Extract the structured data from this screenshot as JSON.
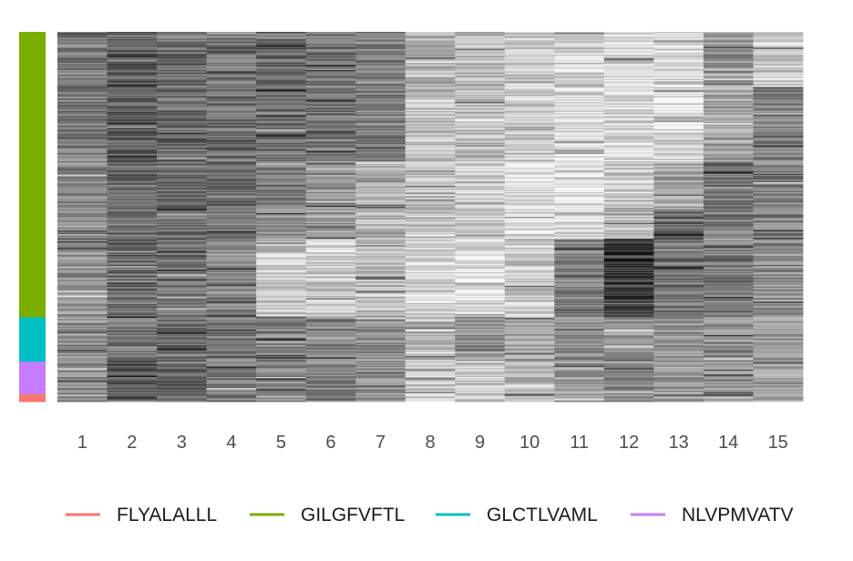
{
  "chart_data": {
    "type": "heatmap",
    "title": "",
    "xlabel": "",
    "ylabel": "",
    "x": [
      "1",
      "2",
      "3",
      "4",
      "5",
      "6",
      "7",
      "8",
      "9",
      "10",
      "11",
      "12",
      "13",
      "14",
      "15"
    ],
    "grid": false,
    "legend_position": "bottom",
    "value_range": [
      0,
      1
    ],
    "row_groups": [
      {
        "name": "GILGFVFTL",
        "color": "#7CAE00",
        "fraction": 0.772
      },
      {
        "name": "GLCTLVAML",
        "color": "#00BFC4",
        "fraction": 0.12
      },
      {
        "name": "NLVPMVATV",
        "color": "#C77CFF",
        "fraction": 0.088
      },
      {
        "name": "FLYALALLL",
        "color": "#F8766D",
        "fraction": 0.02
      }
    ],
    "row_blocks": [
      {
        "fraction": 0.15,
        "col_means": [
          0.5,
          0.35,
          0.42,
          0.45,
          0.42,
          0.45,
          0.5,
          0.72,
          0.72,
          0.76,
          0.82,
          0.82,
          0.86,
          0.6,
          0.78
        ]
      },
      {
        "fraction": 0.2,
        "col_means": [
          0.5,
          0.35,
          0.42,
          0.45,
          0.42,
          0.45,
          0.5,
          0.75,
          0.75,
          0.8,
          0.9,
          0.85,
          0.85,
          0.65,
          0.5
        ]
      },
      {
        "fraction": 0.13,
        "col_means": [
          0.52,
          0.4,
          0.42,
          0.42,
          0.5,
          0.55,
          0.7,
          0.75,
          0.8,
          0.88,
          0.9,
          0.8,
          0.65,
          0.45,
          0.5
        ]
      },
      {
        "fraction": 0.08,
        "col_means": [
          0.55,
          0.45,
          0.45,
          0.45,
          0.55,
          0.62,
          0.7,
          0.75,
          0.8,
          0.88,
          0.82,
          0.7,
          0.4,
          0.5,
          0.5
        ]
      },
      {
        "fraction": 0.21,
        "col_means": [
          0.55,
          0.42,
          0.45,
          0.52,
          0.78,
          0.78,
          0.72,
          0.85,
          0.88,
          0.8,
          0.5,
          0.22,
          0.45,
          0.5,
          0.55
        ]
      },
      {
        "fraction": 0.12,
        "col_means": [
          0.55,
          0.45,
          0.45,
          0.5,
          0.5,
          0.52,
          0.58,
          0.72,
          0.6,
          0.65,
          0.55,
          0.6,
          0.6,
          0.55,
          0.6
        ]
      },
      {
        "fraction": 0.11,
        "col_means": [
          0.55,
          0.35,
          0.38,
          0.5,
          0.55,
          0.52,
          0.58,
          0.78,
          0.78,
          0.72,
          0.6,
          0.52,
          0.62,
          0.6,
          0.65
        ]
      }
    ]
  },
  "legend": {
    "items": [
      {
        "label": "FLYALALLL",
        "color": "#F8766D"
      },
      {
        "label": "GILGFVFTL",
        "color": "#7CAE00"
      },
      {
        "label": "GLCTLVAML",
        "color": "#00BFC4"
      },
      {
        "label": "NLVPMVATV",
        "color": "#C77CFF"
      }
    ]
  }
}
